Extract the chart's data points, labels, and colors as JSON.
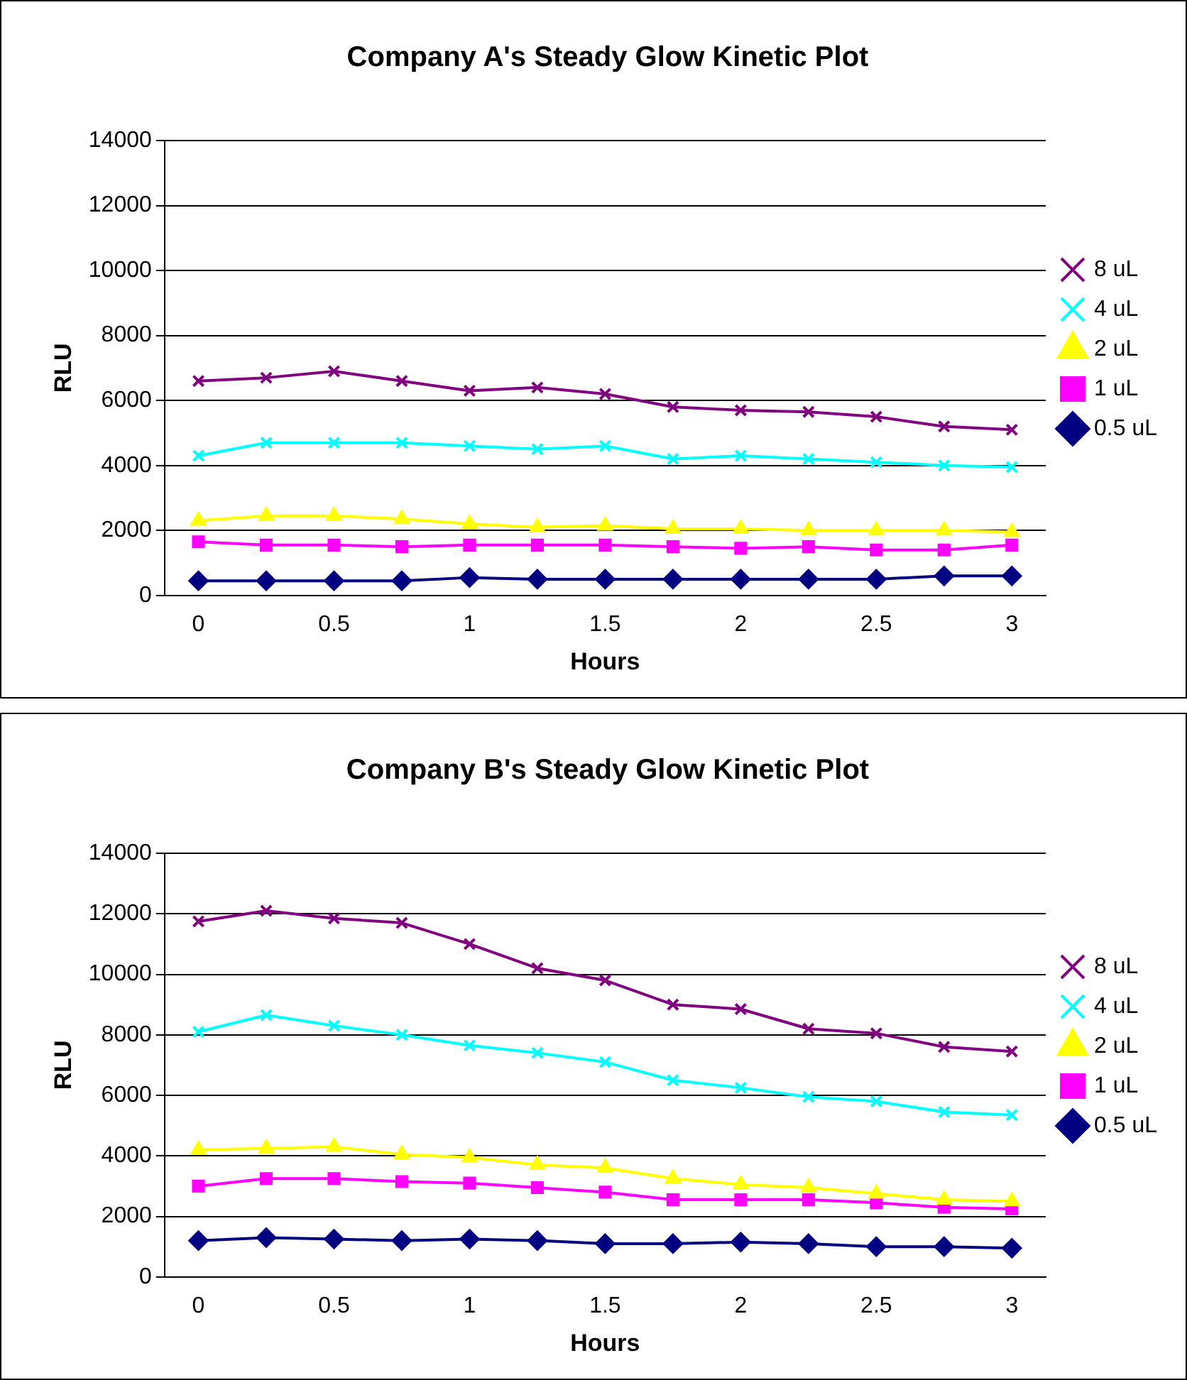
{
  "chart_data": [
    {
      "type": "line",
      "title": "Company A's Steady Glow Kinetic Plot",
      "xlabel": "Hours",
      "ylabel": "RLU",
      "categories": [
        "0",
        null,
        "0.5",
        null,
        "1",
        null,
        "1.5",
        null,
        "2",
        null,
        "2.5",
        null,
        "3"
      ],
      "ylim": [
        0,
        14000
      ],
      "yticks": [
        0,
        2000,
        4000,
        6000,
        8000,
        10000,
        12000,
        14000
      ],
      "grid": "y",
      "legend": "right",
      "series": [
        {
          "name": "8 uL",
          "color": "#800080",
          "marker": "cross",
          "values": [
            6600,
            6700,
            6900,
            6600,
            6300,
            6400,
            6200,
            5800,
            5700,
            5650,
            5500,
            5200,
            5100
          ]
        },
        {
          "name": "4 uL",
          "color": "#00ffff",
          "marker": "cross",
          "values": [
            4300,
            4700,
            4700,
            4700,
            4600,
            4500,
            4600,
            4200,
            4300,
            4200,
            4100,
            4000,
            3950
          ]
        },
        {
          "name": "2 uL",
          "color": "#ffff00",
          "marker": "triangle",
          "values": [
            2300,
            2450,
            2450,
            2350,
            2200,
            2100,
            2150,
            2050,
            2050,
            2000,
            2000,
            2000,
            1950
          ]
        },
        {
          "name": "1 uL",
          "color": "#ff00ff",
          "marker": "square",
          "values": [
            1650,
            1550,
            1550,
            1500,
            1550,
            1550,
            1550,
            1500,
            1450,
            1500,
            1400,
            1400,
            1550
          ]
        },
        {
          "name": "0.5 uL",
          "color": "#000080",
          "marker": "diamond",
          "values": [
            450,
            450,
            450,
            450,
            550,
            500,
            500,
            500,
            500,
            500,
            500,
            600,
            600
          ]
        }
      ]
    },
    {
      "type": "line",
      "title": "Company B's Steady Glow Kinetic Plot",
      "xlabel": "Hours",
      "ylabel": "RLU",
      "categories": [
        "0",
        null,
        "0.5",
        null,
        "1",
        null,
        "1.5",
        null,
        "2",
        null,
        "2.5",
        null,
        "3"
      ],
      "ylim": [
        0,
        14000
      ],
      "yticks": [
        0,
        2000,
        4000,
        6000,
        8000,
        10000,
        12000,
        14000
      ],
      "grid": "y",
      "legend": "right",
      "series": [
        {
          "name": "8 uL",
          "color": "#800080",
          "marker": "cross",
          "values": [
            11750,
            12100,
            11850,
            11700,
            11000,
            10200,
            9800,
            9000,
            8850,
            8200,
            8050,
            7600,
            7450
          ]
        },
        {
          "name": "4 uL",
          "color": "#00ffff",
          "marker": "cross",
          "values": [
            8100,
            8650,
            8300,
            8000,
            7650,
            7400,
            7100,
            6500,
            6250,
            5950,
            5800,
            5450,
            5350
          ]
        },
        {
          "name": "2 uL",
          "color": "#ffff00",
          "marker": "triangle",
          "values": [
            4200,
            4250,
            4300,
            4050,
            3950,
            3700,
            3600,
            3250,
            3050,
            2950,
            2750,
            2550,
            2500
          ]
        },
        {
          "name": "1 uL",
          "color": "#ff00ff",
          "marker": "square",
          "values": [
            3000,
            3250,
            3250,
            3150,
            3100,
            2950,
            2800,
            2550,
            2550,
            2550,
            2450,
            2300,
            2250
          ]
        },
        {
          "name": "0.5 uL",
          "color": "#000080",
          "marker": "diamond",
          "values": [
            1200,
            1300,
            1250,
            1200,
            1250,
            1200,
            1100,
            1100,
            1150,
            1100,
            1000,
            1000,
            950
          ]
        }
      ]
    }
  ]
}
